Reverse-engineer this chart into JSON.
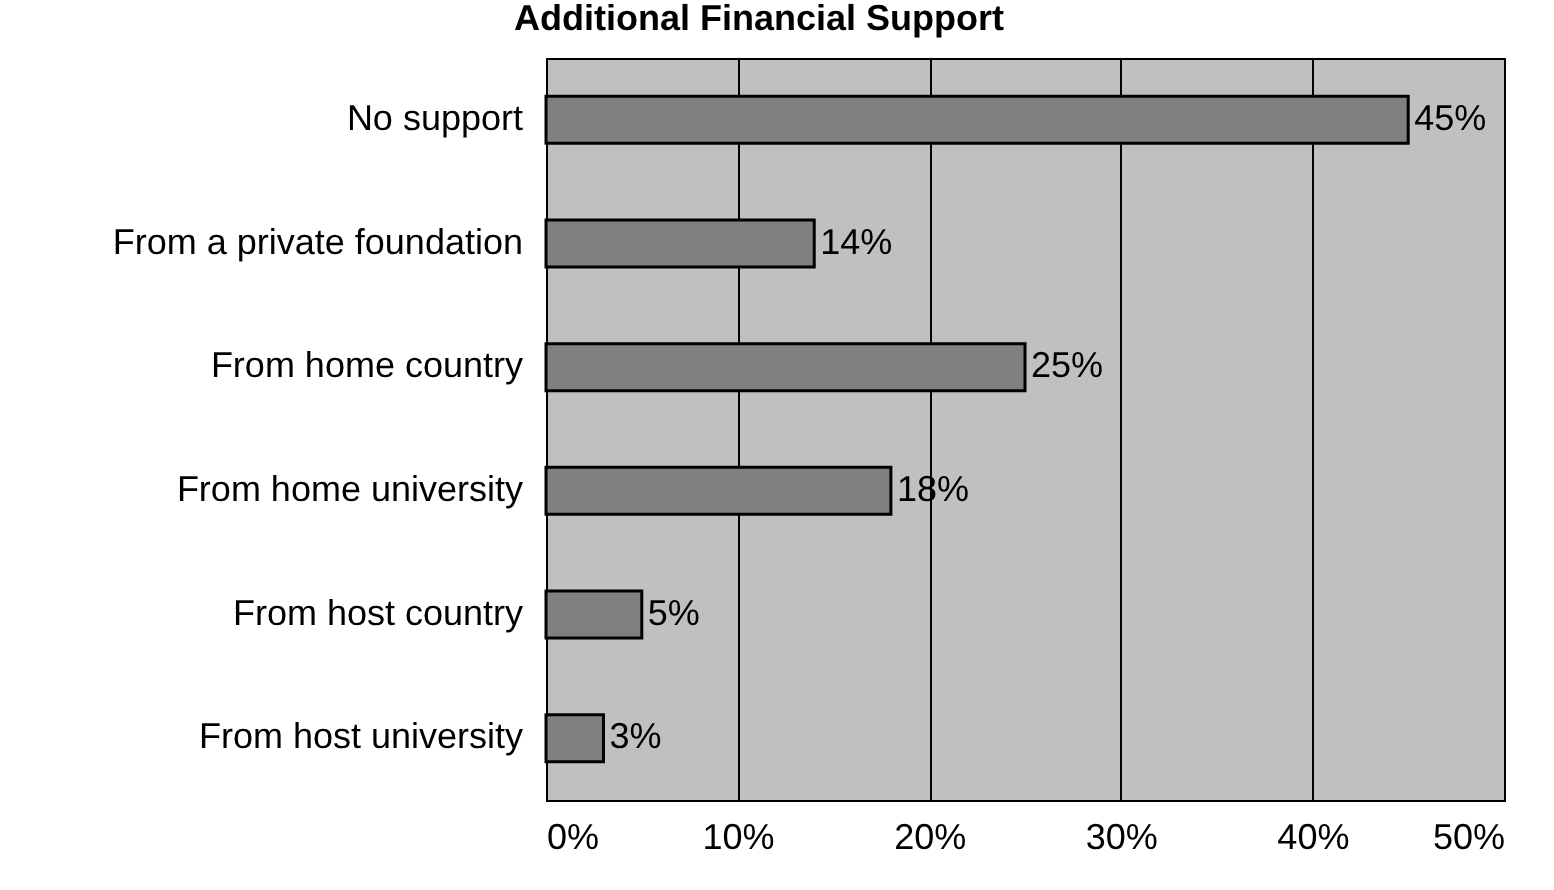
{
  "chart_data": {
    "type": "bar",
    "orientation": "horizontal",
    "title": "Additional Financial Support",
    "categories": [
      "No support",
      "From a private foundation",
      "From home country",
      "From home university",
      "From host country",
      "From host university"
    ],
    "values": [
      45,
      14,
      25,
      18,
      5,
      3
    ],
    "value_labels": [
      "45%",
      "14%",
      "25%",
      "18%",
      "5%",
      "3%"
    ],
    "color": "#808080",
    "xlim": [
      0,
      50
    ],
    "xticks": [
      {
        "value": 0,
        "label": "0%"
      },
      {
        "value": 10,
        "label": "10%"
      },
      {
        "value": 20,
        "label": "20%"
      },
      {
        "value": 30,
        "label": "30%"
      },
      {
        "value": 40,
        "label": "40%"
      },
      {
        "value": 50,
        "label": "50%"
      }
    ],
    "grid": "x"
  }
}
